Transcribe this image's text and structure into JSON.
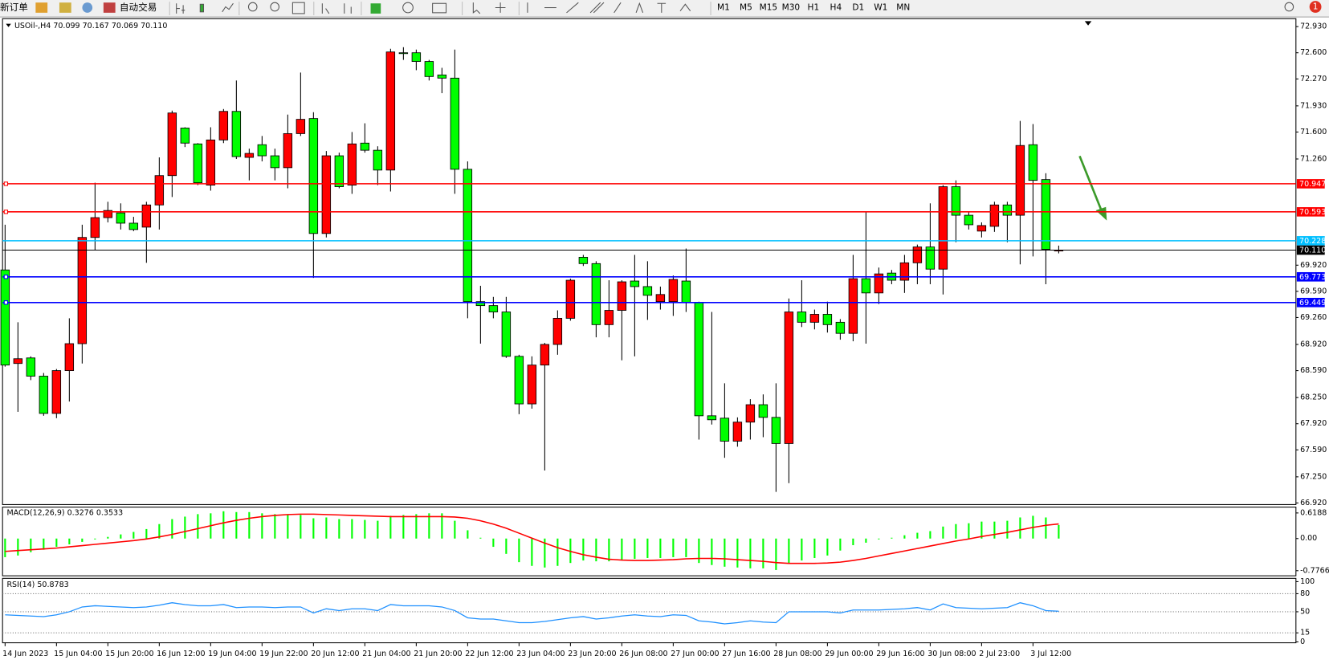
{
  "toolbar": {
    "new_order": "新订单",
    "auto_trading": "自动交易",
    "timeframes": [
      "M1",
      "M5",
      "M15",
      "M30",
      "H1",
      "H4",
      "D1",
      "W1",
      "MN"
    ],
    "alerts": 1
  },
  "chart_data": [
    {
      "type": "candlestick",
      "title": "USOil-,H4 70.099 70.167 70.069 70.110",
      "categories": [
        "14 Jun 2023",
        null,
        null,
        null,
        "15 Jun 04:00",
        null,
        null,
        null,
        "15 Jun 20:00",
        null,
        null,
        null,
        "16 Jun 12:00",
        null,
        null,
        null,
        "19 Jun 04:00",
        null,
        null,
        null,
        "19 Jun 22:00",
        null,
        null,
        null,
        "20 Jun 12:00",
        null,
        null,
        null,
        "21 Jun 04:00",
        null,
        null,
        null,
        "21 Jun 20:00",
        null,
        null,
        null,
        "22 Jun 12:00",
        null,
        null,
        null,
        "23 Jun 04:00",
        null,
        null,
        null,
        "23 Jun 20:00",
        null,
        null,
        null,
        "26 Jun 08:00",
        null,
        null,
        null,
        "27 Jun 00:00",
        null,
        null,
        null,
        "27 Jun 16:00",
        null,
        null,
        null,
        "28 Jun 08:00",
        null,
        null,
        null,
        "29 Jun 00:00",
        null,
        null,
        null,
        "29 Jun 16:00",
        null,
        null,
        null,
        "30 Jun 08:00",
        null,
        null,
        null,
        "2 Jul 23:00",
        null,
        null,
        null,
        "3 Jul 12:00",
        null,
        null
      ],
      "ohlc": [
        [
          69.86,
          70.43,
          68.64,
          68.66
        ],
        [
          68.68,
          69.2,
          68.07,
          68.74
        ],
        [
          68.75,
          68.77,
          68.47,
          68.52
        ],
        [
          68.52,
          68.56,
          68.02,
          68.05
        ],
        [
          68.05,
          68.61,
          67.99,
          68.59
        ],
        [
          68.59,
          69.25,
          68.2,
          68.93
        ],
        [
          68.93,
          70.43,
          68.68,
          70.27
        ],
        [
          70.27,
          70.96,
          70.11,
          70.52
        ],
        [
          70.52,
          70.72,
          70.46,
          70.61
        ],
        [
          70.58,
          70.7,
          70.37,
          70.45
        ],
        [
          70.45,
          70.53,
          70.35,
          70.37
        ],
        [
          70.4,
          70.72,
          69.95,
          70.68
        ],
        [
          70.68,
          71.28,
          70.37,
          71.05
        ],
        [
          71.05,
          71.87,
          70.78,
          71.84
        ],
        [
          71.65,
          71.66,
          71.41,
          71.46
        ],
        [
          71.45,
          71.46,
          70.93,
          70.96
        ],
        [
          70.93,
          71.66,
          70.86,
          71.5
        ],
        [
          71.5,
          71.89,
          71.46,
          71.86
        ],
        [
          71.86,
          72.25,
          71.26,
          71.29
        ],
        [
          71.28,
          71.39,
          70.99,
          71.33
        ],
        [
          71.44,
          71.55,
          71.23,
          71.3
        ],
        [
          71.3,
          71.39,
          70.99,
          71.15
        ],
        [
          71.15,
          71.82,
          70.89,
          71.58
        ],
        [
          71.58,
          72.35,
          71.55,
          71.76
        ],
        [
          71.77,
          71.85,
          69.76,
          70.32
        ],
        [
          70.32,
          71.36,
          70.27,
          71.3
        ],
        [
          71.3,
          71.34,
          70.89,
          70.91
        ],
        [
          70.93,
          71.6,
          70.82,
          71.45
        ],
        [
          71.46,
          71.71,
          71.34,
          71.37
        ],
        [
          71.37,
          71.42,
          70.93,
          71.12
        ],
        [
          71.12,
          72.65,
          70.85,
          72.61
        ],
        [
          72.6,
          72.67,
          72.51,
          72.59
        ],
        [
          72.6,
          72.64,
          72.38,
          72.49
        ],
        [
          72.49,
          72.51,
          72.25,
          72.3
        ],
        [
          72.32,
          72.41,
          72.09,
          72.28
        ],
        [
          72.28,
          72.64,
          70.82,
          71.13
        ],
        [
          71.13,
          71.23,
          69.25,
          69.46
        ],
        [
          69.46,
          69.66,
          68.93,
          69.41
        ],
        [
          69.41,
          69.52,
          69.25,
          69.33
        ],
        [
          69.33,
          69.52,
          68.75,
          68.77
        ],
        [
          68.77,
          68.79,
          68.04,
          68.17
        ],
        [
          68.17,
          68.77,
          68.11,
          68.66
        ],
        [
          68.66,
          68.94,
          67.33,
          68.92
        ],
        [
          68.92,
          69.35,
          68.79,
          69.25
        ],
        [
          69.25,
          69.75,
          69.22,
          69.73
        ],
        [
          70.02,
          70.05,
          69.91,
          69.94
        ],
        [
          69.94,
          69.97,
          69.01,
          69.17
        ],
        [
          69.17,
          69.73,
          69.01,
          69.35
        ],
        [
          69.35,
          69.73,
          68.72,
          69.71
        ],
        [
          69.72,
          70.05,
          68.77,
          69.65
        ],
        [
          69.65,
          69.97,
          69.23,
          69.54
        ],
        [
          69.46,
          69.65,
          69.36,
          69.55
        ],
        [
          69.46,
          69.79,
          69.28,
          69.74
        ],
        [
          69.72,
          70.13,
          69.33,
          69.45
        ],
        [
          69.45,
          69.46,
          67.72,
          68.02
        ],
        [
          68.02,
          69.33,
          67.91,
          67.97
        ],
        [
          67.99,
          68.43,
          67.49,
          67.7
        ],
        [
          67.7,
          68.0,
          67.63,
          67.94
        ],
        [
          67.94,
          68.23,
          67.72,
          68.16
        ],
        [
          68.16,
          68.29,
          67.75,
          68.0
        ],
        [
          68.0,
          68.43,
          67.06,
          67.67
        ],
        [
          67.67,
          69.5,
          67.17,
          69.33
        ],
        [
          69.33,
          69.73,
          69.14,
          69.2
        ],
        [
          69.2,
          69.36,
          69.11,
          69.3
        ],
        [
          69.3,
          69.46,
          69.07,
          69.17
        ],
        [
          69.2,
          69.24,
          68.98,
          69.06
        ],
        [
          69.06,
          70.05,
          68.96,
          69.75
        ],
        [
          69.75,
          70.59,
          68.93,
          69.57
        ],
        [
          69.57,
          69.89,
          69.43,
          69.81
        ],
        [
          69.82,
          69.86,
          69.68,
          69.73
        ],
        [
          69.73,
          70.05,
          69.57,
          69.95
        ],
        [
          69.95,
          70.18,
          69.68,
          70.15
        ],
        [
          70.15,
          70.7,
          69.68,
          69.87
        ],
        [
          69.87,
          70.93,
          69.55,
          70.91
        ],
        [
          70.91,
          70.99,
          70.21,
          70.55
        ],
        [
          70.55,
          70.59,
          70.37,
          70.43
        ],
        [
          70.35,
          70.46,
          70.27,
          70.42
        ],
        [
          70.41,
          70.72,
          70.34,
          70.68
        ],
        [
          70.68,
          70.72,
          70.21,
          70.55
        ],
        [
          70.55,
          71.74,
          69.93,
          71.43
        ],
        [
          71.44,
          71.7,
          70.03,
          70.99
        ],
        [
          71.0,
          71.08,
          69.68,
          70.12
        ],
        [
          70.099,
          70.167,
          70.069,
          70.11
        ]
      ],
      "up_color": "#ff0000",
      "down_color": "#00ff00",
      "ylim": [
        66.9,
        73.03
      ],
      "yticks": [
        {
          "value": 72.93,
          "label": "72.930"
        },
        {
          "value": 72.6,
          "label": "72.600"
        },
        {
          "value": 72.27,
          "label": "72.270"
        },
        {
          "value": 71.93,
          "label": "71.930"
        },
        {
          "value": 71.6,
          "label": "71.600"
        },
        {
          "value": 71.26,
          "label": "71.260"
        },
        {
          "value": 69.92,
          "label": "69.920"
        },
        {
          "value": 69.59,
          "label": "69.590"
        },
        {
          "value": 69.26,
          "label": "69.260"
        },
        {
          "value": 68.92,
          "label": "68.920"
        },
        {
          "value": 68.59,
          "label": "68.590"
        },
        {
          "value": 68.25,
          "label": "68.250"
        },
        {
          "value": 67.92,
          "label": "67.920"
        },
        {
          "value": 67.59,
          "label": "67.590"
        },
        {
          "value": 67.25,
          "label": "67.250"
        },
        {
          "value": 66.92,
          "label": "66.920"
        }
      ],
      "hlines": [
        70.947,
        70.593,
        70.228,
        {
          "value": 70.11,
          "label": "70.110"
        },
        69.773,
        69.449
      ],
      "hline_colors": [
        "#ff0000",
        "#ff0000",
        "#00bfff",
        "#000000",
        "#0000ff",
        "#0000ff"
      ]
    },
    {
      "type": "macd",
      "title": "MACD(12,26,9) 0.3276 0.3533",
      "histogram": {
        "color": "#00ff00",
        "values": [
          -0.45,
          -0.41,
          -0.33,
          -0.27,
          -0.2,
          -0.14,
          -0.08,
          -0.02,
          0.04,
          0.1,
          0.16,
          0.23,
          0.35,
          0.47,
          0.53,
          0.59,
          0.61,
          0.66,
          0.64,
          0.64,
          0.61,
          0.59,
          0.57,
          0.57,
          0.49,
          0.51,
          0.47,
          0.47,
          0.45,
          0.43,
          0.55,
          0.57,
          0.59,
          0.61,
          0.61,
          0.43,
          0.2,
          0.02,
          -0.2,
          -0.37,
          -0.57,
          -0.66,
          -0.7,
          -0.66,
          -0.59,
          -0.53,
          -0.55,
          -0.55,
          -0.51,
          -0.49,
          -0.47,
          -0.47,
          -0.45,
          -0.45,
          -0.59,
          -0.64,
          -0.68,
          -0.7,
          -0.72,
          -0.72,
          -0.76,
          -0.59,
          -0.53,
          -0.47,
          -0.41,
          -0.29,
          -0.16,
          -0.1,
          -0.02,
          0.02,
          0.08,
          0.14,
          0.18,
          0.29,
          0.35,
          0.37,
          0.41,
          0.41,
          0.43,
          0.51,
          0.55,
          0.51,
          0.3276
        ]
      },
      "signal": {
        "color": "#ff0000",
        "values": [
          -0.31,
          -0.29,
          -0.27,
          -0.25,
          -0.23,
          -0.2,
          -0.17,
          -0.14,
          -0.11,
          -0.08,
          -0.05,
          -0.01,
          0.04,
          0.1,
          0.17,
          0.24,
          0.31,
          0.38,
          0.44,
          0.49,
          0.53,
          0.56,
          0.58,
          0.59,
          0.59,
          0.58,
          0.57,
          0.56,
          0.55,
          0.54,
          0.53,
          0.53,
          0.53,
          0.53,
          0.53,
          0.52,
          0.49,
          0.43,
          0.35,
          0.25,
          0.13,
          0.01,
          -0.11,
          -0.22,
          -0.31,
          -0.39,
          -0.45,
          -0.5,
          -0.52,
          -0.53,
          -0.53,
          -0.52,
          -0.51,
          -0.49,
          -0.48,
          -0.48,
          -0.49,
          -0.51,
          -0.53,
          -0.55,
          -0.58,
          -0.6,
          -0.6,
          -0.6,
          -0.59,
          -0.57,
          -0.53,
          -0.48,
          -0.42,
          -0.36,
          -0.3,
          -0.24,
          -0.18,
          -0.12,
          -0.06,
          -0.01,
          0.05,
          0.1,
          0.15,
          0.21,
          0.27,
          0.32,
          0.3533
        ]
      },
      "ylim": [
        -0.9,
        0.76
      ],
      "yticks": [
        0.6188,
        {
          "value": 0,
          "label": "0.00"
        },
        -0.7766
      ]
    },
    {
      "type": "rsi",
      "title": "RSI(14) 50.8783",
      "color": "#1e90ff",
      "values": [
        45,
        44,
        43,
        42,
        45,
        50,
        58,
        60,
        59,
        58,
        57,
        58,
        61,
        65,
        62,
        60,
        60,
        62,
        57,
        58,
        58,
        57,
        58,
        58,
        48,
        55,
        52,
        55,
        55,
        52,
        62,
        60,
        60,
        60,
        58,
        52,
        40,
        38,
        38,
        35,
        32,
        32,
        34,
        37,
        40,
        42,
        38,
        40,
        43,
        45,
        43,
        42,
        45,
        44,
        35,
        33,
        30,
        32,
        35,
        33,
        32,
        50,
        50,
        50,
        50,
        48,
        53,
        53,
        53,
        54,
        55,
        57,
        53,
        63,
        57,
        56,
        55,
        56,
        57,
        65,
        60,
        52,
        50.8783
      ],
      "ylim": [
        -1.5,
        105.5
      ],
      "yticks": [
        100,
        80,
        50,
        15,
        0
      ]
    }
  ]
}
